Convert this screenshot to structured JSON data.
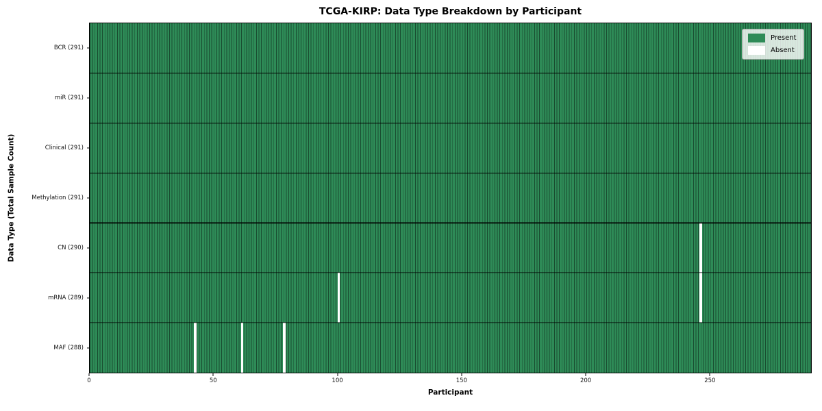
{
  "chart_data": {
    "type": "heatmap",
    "title": "TCGA-KIRP: Data Type Breakdown by Participant",
    "xlabel": "Participant",
    "ylabel": "Data Type (Total Sample Count)",
    "x_ticks": [
      0,
      50,
      100,
      150,
      200,
      250
    ],
    "xlim": [
      0,
      291
    ],
    "n_participants": 291,
    "grid": false,
    "legend_position": "upper right",
    "legend": [
      {
        "label": "Present",
        "color": "#2e8b57"
      },
      {
        "label": "Absent",
        "color": "#ffffff"
      }
    ],
    "colors": {
      "present": "#2e8b57",
      "absent": "#ffffff",
      "cell_edge": "rgba(0,0,0,0.45)",
      "row_divider": "#000000",
      "background": "#ffffff"
    },
    "rows": [
      {
        "label": "BCR (291)",
        "data_type": "BCR",
        "present_count": 291,
        "absent_participants": []
      },
      {
        "label": "miR (291)",
        "data_type": "miR",
        "present_count": 291,
        "absent_participants": []
      },
      {
        "label": "Clinical (291)",
        "data_type": "Clinical",
        "present_count": 291,
        "absent_participants": []
      },
      {
        "label": "Methylation (291)",
        "data_type": "Methylation",
        "present_count": 291,
        "absent_participants": []
      },
      {
        "label": "CN (290)",
        "data_type": "CN",
        "present_count": 290,
        "absent_participants": [
          246
        ]
      },
      {
        "label": "mRNA (289)",
        "data_type": "mRNA",
        "present_count": 289,
        "absent_participants": [
          100,
          246
        ]
      },
      {
        "label": "MAF (288)",
        "data_type": "MAF",
        "present_count": 288,
        "absent_participants": [
          42,
          61,
          78
        ]
      }
    ]
  }
}
